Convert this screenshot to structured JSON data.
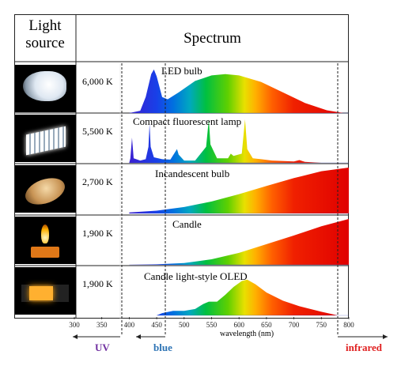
{
  "header": {
    "source_line1": "Light",
    "source_line2": "source",
    "spectrum": "Spectrum"
  },
  "colors": {
    "uv": "#7030a0",
    "blue": "#2e74b5",
    "infrared": "#e02020"
  },
  "chart_data": {
    "type": "area",
    "xlabel": "wavelength (nm)",
    "xlim": [
      300,
      800
    ],
    "xticks": [
      300,
      350,
      400,
      450,
      500,
      550,
      600,
      650,
      700,
      750,
      800
    ],
    "regions": [
      {
        "label": "UV",
        "range": [
          300,
          390
        ],
        "side": "left"
      },
      {
        "label": "blue",
        "range": [
          390,
          470
        ],
        "side": "left"
      },
      {
        "label": "infrared",
        "range": [
          770,
          800
        ],
        "side": "right"
      }
    ],
    "rows": [
      {
        "name": "LED bulb",
        "temperature": "6,000 K",
        "icon": "led-bulb-icon",
        "points": [
          [
            400,
            0
          ],
          [
            420,
            0.05
          ],
          [
            430,
            0.35
          ],
          [
            440,
            0.85
          ],
          [
            445,
            0.95
          ],
          [
            450,
            0.8
          ],
          [
            460,
            0.35
          ],
          [
            470,
            0.3
          ],
          [
            490,
            0.45
          ],
          [
            520,
            0.7
          ],
          [
            550,
            0.82
          ],
          [
            575,
            0.85
          ],
          [
            600,
            0.82
          ],
          [
            640,
            0.68
          ],
          [
            680,
            0.45
          ],
          [
            720,
            0.22
          ],
          [
            760,
            0.06
          ],
          [
            790,
            0
          ]
        ]
      },
      {
        "name": "Compact fluorescent lamp",
        "temperature": "5,500 K",
        "icon": "fluorescent-lamp-icon",
        "points": [
          [
            400,
            0
          ],
          [
            402,
            0.1
          ],
          [
            405,
            0.55
          ],
          [
            408,
            0.1
          ],
          [
            420,
            0.05
          ],
          [
            430,
            0.08
          ],
          [
            435,
            0.35
          ],
          [
            437,
            0.85
          ],
          [
            439,
            0.35
          ],
          [
            445,
            0.12
          ],
          [
            460,
            0.08
          ],
          [
            475,
            0.07
          ],
          [
            487,
            0.3
          ],
          [
            490,
            0.18
          ],
          [
            500,
            0.05
          ],
          [
            520,
            0.05
          ],
          [
            540,
            0.35
          ],
          [
            545,
            0.95
          ],
          [
            548,
            0.4
          ],
          [
            560,
            0.1
          ],
          [
            580,
            0.1
          ],
          [
            585,
            0.2
          ],
          [
            590,
            0.15
          ],
          [
            605,
            0.2
          ],
          [
            611,
            0.95
          ],
          [
            615,
            0.3
          ],
          [
            625,
            0.1
          ],
          [
            640,
            0.08
          ],
          [
            660,
            0.05
          ],
          [
            700,
            0.03
          ],
          [
            710,
            0.06
          ],
          [
            720,
            0.02
          ],
          [
            750,
            0
          ]
        ]
      },
      {
        "name": "Incandescent bulb",
        "temperature": "2,700 K",
        "icon": "incandescent-bulb-icon",
        "points": [
          [
            400,
            0.02
          ],
          [
            450,
            0.06
          ],
          [
            500,
            0.14
          ],
          [
            550,
            0.26
          ],
          [
            600,
            0.42
          ],
          [
            650,
            0.6
          ],
          [
            700,
            0.77
          ],
          [
            750,
            0.92
          ],
          [
            800,
            1.0
          ]
        ]
      },
      {
        "name": "Candle",
        "temperature": "1,900 K",
        "icon": "candle-icon",
        "points": [
          [
            400,
            0
          ],
          [
            450,
            0.01
          ],
          [
            500,
            0.04
          ],
          [
            550,
            0.12
          ],
          [
            600,
            0.26
          ],
          [
            650,
            0.45
          ],
          [
            700,
            0.64
          ],
          [
            750,
            0.84
          ],
          [
            800,
            1.0
          ]
        ]
      },
      {
        "name": "Candle light-style OLED",
        "temperature": "1,900 K",
        "icon": "oled-panel-icon",
        "points": [
          [
            450,
            0
          ],
          [
            460,
            0.05
          ],
          [
            480,
            0.1
          ],
          [
            500,
            0.1
          ],
          [
            520,
            0.14
          ],
          [
            535,
            0.25
          ],
          [
            545,
            0.3
          ],
          [
            560,
            0.3
          ],
          [
            575,
            0.45
          ],
          [
            590,
            0.62
          ],
          [
            605,
            0.75
          ],
          [
            615,
            0.78
          ],
          [
            630,
            0.68
          ],
          [
            650,
            0.5
          ],
          [
            680,
            0.32
          ],
          [
            710,
            0.2
          ],
          [
            750,
            0.08
          ],
          [
            780,
            0
          ]
        ]
      }
    ]
  }
}
